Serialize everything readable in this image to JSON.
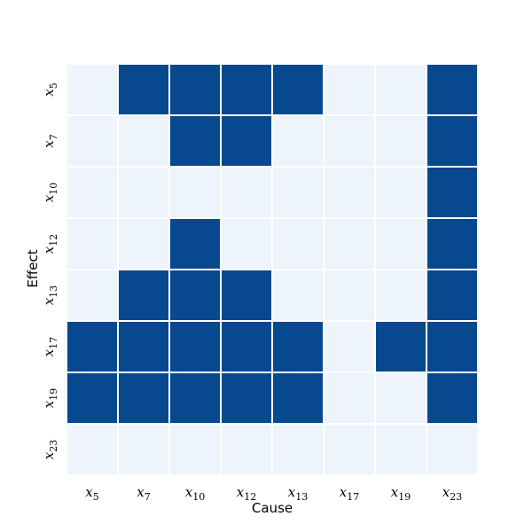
{
  "chart_data": {
    "type": "heatmap",
    "title": "",
    "xlabel": "Cause",
    "ylabel": "Effect",
    "x_categories": [
      "x_5",
      "x_7",
      "x_10",
      "x_12",
      "x_13",
      "x_17",
      "x_19",
      "x_23"
    ],
    "y_categories": [
      "x_5",
      "x_7",
      "x_10",
      "x_12",
      "x_13",
      "x_17",
      "x_19",
      "x_23"
    ],
    "x_tick_labels": [
      {
        "base": "x",
        "sub": "5"
      },
      {
        "base": "x",
        "sub": "7"
      },
      {
        "base": "x",
        "sub": "10"
      },
      {
        "base": "x",
        "sub": "12"
      },
      {
        "base": "x",
        "sub": "13"
      },
      {
        "base": "x",
        "sub": "17"
      },
      {
        "base": "x",
        "sub": "19"
      },
      {
        "base": "x",
        "sub": "23"
      }
    ],
    "y_tick_labels": [
      {
        "base": "x",
        "sub": "5"
      },
      {
        "base": "x",
        "sub": "7"
      },
      {
        "base": "x",
        "sub": "10"
      },
      {
        "base": "x",
        "sub": "12"
      },
      {
        "base": "x",
        "sub": "13"
      },
      {
        "base": "x",
        "sub": "17"
      },
      {
        "base": "x",
        "sub": "19"
      },
      {
        "base": "x",
        "sub": "23"
      }
    ],
    "values": [
      [
        0,
        1,
        1,
        1,
        1,
        0,
        0,
        1
      ],
      [
        0,
        0,
        1,
        1,
        0,
        0,
        0,
        1
      ],
      [
        0,
        0,
        0,
        0,
        0,
        0,
        0,
        1
      ],
      [
        0,
        0,
        1,
        0,
        0,
        0,
        0,
        1
      ],
      [
        0,
        1,
        1,
        1,
        0,
        0,
        0,
        1
      ],
      [
        1,
        1,
        1,
        1,
        1,
        0,
        1,
        1
      ],
      [
        1,
        1,
        1,
        1,
        1,
        0,
        0,
        1
      ],
      [
        0,
        0,
        0,
        0,
        0,
        0,
        0,
        0
      ]
    ],
    "colors": {
      "zero": "#eef4fc",
      "one": "#08488e",
      "grid": "#ffffff"
    },
    "legend": "none",
    "colorbar": false
  }
}
